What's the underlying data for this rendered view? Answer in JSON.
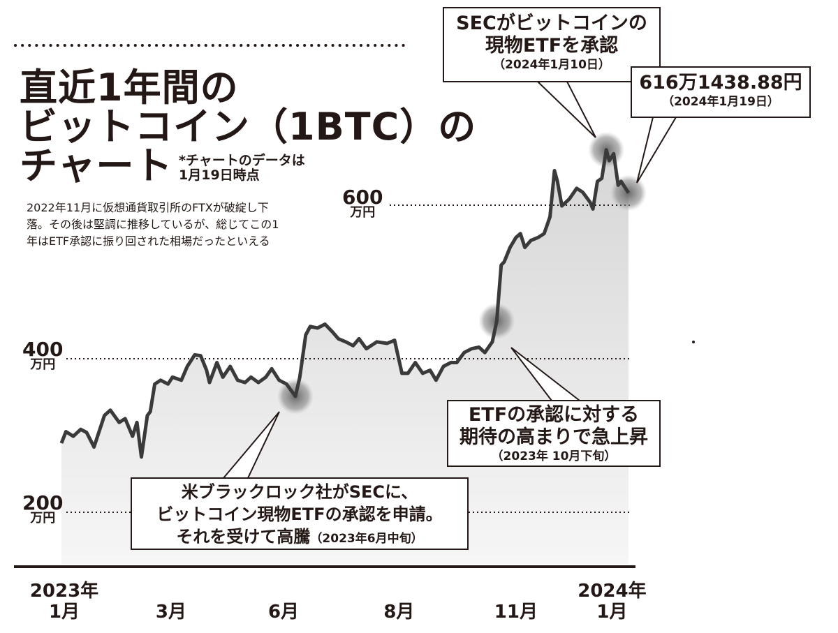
{
  "title_lines": [
    "直近1年間の",
    "ビットコイン（1BTC）の",
    "チャート"
  ],
  "note_lines": [
    "*チャートのデータは",
    "1月19日時点"
  ],
  "description": "2022年11月に仮想通貨取引所のFTXが破綻し下落。その後は堅調に推移しているが、総じてこの1年はETF承認に振り回された相場だったといえる",
  "callouts": {
    "sec": {
      "line1": "SECがビットコインの",
      "line2": "現物ETFを承認",
      "date": "（2024年1月10日）"
    },
    "price": {
      "line1": "616万1438.88円",
      "date": "（2024年1月19日）"
    },
    "etf": {
      "line1": "ETFの承認に対する",
      "line2": "期待の高まりで急上昇",
      "date": "（2023年 10月下旬）"
    },
    "blackrock": {
      "line1": "米ブラックロック社がSECに、",
      "line2": "ビットコイン現物ETFの承認を申請。",
      "line3": "それを受けて高騰",
      "date": "（2023年6月中旬）"
    }
  },
  "chart_data": {
    "type": "area",
    "title": "直近1年間のビットコイン（1BTC）のチャート",
    "xlabel": "",
    "ylabel": "万円",
    "x_unit": "days since 2023-01-01",
    "xlim": [
      0,
      383
    ],
    "ylim": [
      133,
      700
    ],
    "y_ticks": [
      {
        "value": 600,
        "label": "600",
        "unit": "万円"
      },
      {
        "value": 400,
        "label": "400",
        "unit": "万円"
      },
      {
        "value": 200,
        "label": "200",
        "unit": "万円"
      }
    ],
    "x_ticks": [
      {
        "day": 0,
        "year": "2023年",
        "label": "1月"
      },
      {
        "day": 74,
        "year": "",
        "label": "3月"
      },
      {
        "day": 150,
        "year": "",
        "label": "6月"
      },
      {
        "day": 228,
        "year": "",
        "label": "8月"
      },
      {
        "day": 307,
        "year": "",
        "label": "11月"
      },
      {
        "day": 370,
        "year": "2024年",
        "label": "1月"
      }
    ],
    "highlights": [
      158,
      294,
      368,
      383
    ],
    "points": [
      [
        0,
        290
      ],
      [
        3,
        305
      ],
      [
        8,
        299
      ],
      [
        13,
        308
      ],
      [
        17,
        304
      ],
      [
        22,
        285
      ],
      [
        29,
        326
      ],
      [
        33,
        333
      ],
      [
        39,
        317
      ],
      [
        43,
        322
      ],
      [
        48,
        299
      ],
      [
        51,
        317
      ],
      [
        54,
        272
      ],
      [
        58,
        326
      ],
      [
        60,
        331
      ],
      [
        63,
        367
      ],
      [
        67,
        372
      ],
      [
        72,
        367
      ],
      [
        75,
        376
      ],
      [
        81,
        372
      ],
      [
        85,
        390
      ],
      [
        90,
        405
      ],
      [
        94,
        404
      ],
      [
        98,
        385
      ],
      [
        100,
        369
      ],
      [
        105,
        395
      ],
      [
        109,
        376
      ],
      [
        114,
        390
      ],
      [
        119,
        372
      ],
      [
        124,
        369
      ],
      [
        128,
        376
      ],
      [
        133,
        369
      ],
      [
        138,
        376
      ],
      [
        142,
        387
      ],
      [
        147,
        372
      ],
      [
        152,
        367
      ],
      [
        158,
        351
      ],
      [
        161,
        376
      ],
      [
        165,
        431
      ],
      [
        168,
        442
      ],
      [
        173,
        440
      ],
      [
        178,
        445
      ],
      [
        183,
        435
      ],
      [
        187,
        426
      ],
      [
        192,
        422
      ],
      [
        197,
        417
      ],
      [
        201,
        426
      ],
      [
        206,
        413
      ],
      [
        213,
        422
      ],
      [
        220,
        420
      ],
      [
        225,
        424
      ],
      [
        230,
        381
      ],
      [
        234,
        381
      ],
      [
        239,
        395
      ],
      [
        244,
        381
      ],
      [
        249,
        385
      ],
      [
        253,
        372
      ],
      [
        258,
        390
      ],
      [
        263,
        395
      ],
      [
        267,
        395
      ],
      [
        272,
        408
      ],
      [
        277,
        413
      ],
      [
        282,
        415
      ],
      [
        286,
        408
      ],
      [
        291,
        422
      ],
      [
        294,
        449
      ],
      [
        297,
        522
      ],
      [
        299,
        526
      ],
      [
        303,
        545
      ],
      [
        307,
        558
      ],
      [
        310,
        563
      ],
      [
        313,
        545
      ],
      [
        317,
        554
      ],
      [
        322,
        558
      ],
      [
        326,
        563
      ],
      [
        330,
        585
      ],
      [
        333,
        645
      ],
      [
        335,
        631
      ],
      [
        338,
        599
      ],
      [
        343,
        608
      ],
      [
        348,
        622
      ],
      [
        352,
        617
      ],
      [
        357,
        604
      ],
      [
        359,
        595
      ],
      [
        362,
        631
      ],
      [
        365,
        635
      ],
      [
        368,
        672
      ],
      [
        370,
        658
      ],
      [
        373,
        667
      ],
      [
        376,
        626
      ],
      [
        378,
        631
      ],
      [
        383,
        616
      ]
    ]
  },
  "colors": {
    "ink": "#231815",
    "line": "#3a3a3a",
    "fill": "#e4e4e4",
    "highlight": "#6e6e6e"
  }
}
